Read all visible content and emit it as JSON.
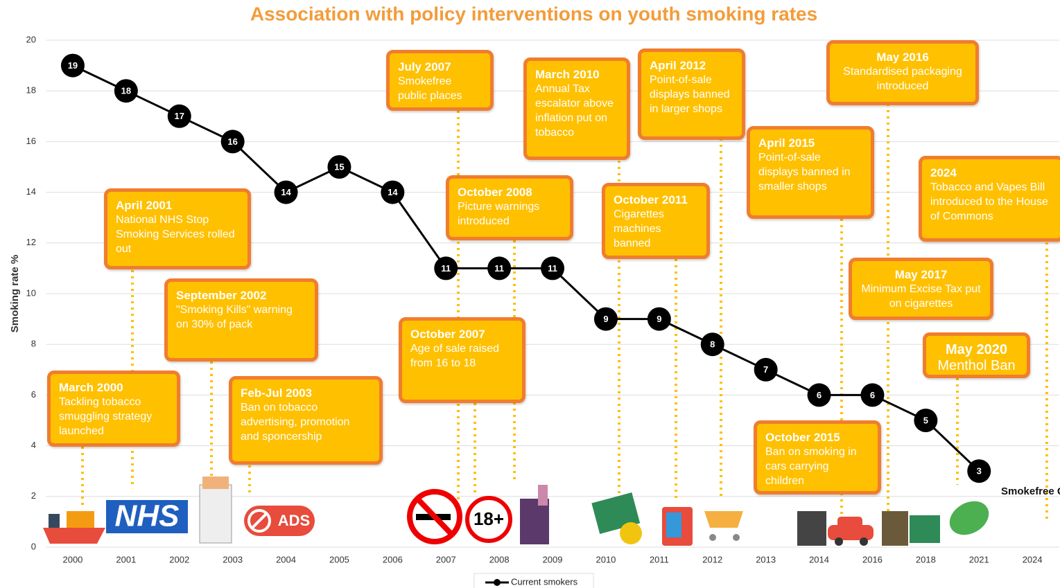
{
  "chart_data": {
    "type": "line",
    "title": "Association with policy interventions on youth smoking rates",
    "y_label": "Smoking rate %",
    "categories": [
      "2000",
      "2001",
      "2002",
      "2003",
      "2004",
      "2005",
      "2006",
      "2007",
      "2008",
      "2009",
      "2010",
      "2011",
      "2012",
      "2013",
      "2014",
      "2016",
      "2018",
      "2021",
      "2024"
    ],
    "series": [
      {
        "name": "Current smokers",
        "color": "#000000",
        "values": [
          19,
          18,
          17,
          16,
          14,
          15,
          14,
          11,
          11,
          11,
          9,
          9,
          8,
          7,
          6,
          6,
          5,
          3,
          null
        ]
      }
    ],
    "ylim": [
      0,
      20
    ],
    "yticks": [
      0,
      2,
      4,
      6,
      8,
      10,
      12,
      14,
      16,
      18,
      20
    ],
    "grid": true,
    "legend": "bottom",
    "annotations": [
      {
        "title": "March 2000",
        "text": "Tackling tobacco smuggling strategy launched"
      },
      {
        "title": "April 2001",
        "text": "National NHS Stop Smoking Services rolled out"
      },
      {
        "title": "September 2002",
        "text": "\"Smoking Kills\" warning on 30% of pack"
      },
      {
        "title": "Feb-Jul 2003",
        "text": "Ban on tobacco advertising, promotion and sponcership"
      },
      {
        "title": "July 2007",
        "text": "Smokefree public places"
      },
      {
        "title": "October 2007",
        "text": "Age of sale raised from 16 to 18"
      },
      {
        "title": "October 2008",
        "text": "Picture warnings introduced"
      },
      {
        "title": "March 2010",
        "text": "Annual Tax escalator above inflation put on tobacco"
      },
      {
        "title": "April 2012",
        "text": "Point-of-sale displays banned in larger shops"
      },
      {
        "title": "October 2011",
        "text": "Cigarettes machines banned"
      },
      {
        "title": "April 2015",
        "text": "Point-of-sale displays banned in smaller shops"
      },
      {
        "title": "May 2016",
        "text": "Standardised packaging introduced"
      },
      {
        "title": "October 2015",
        "text": "Ban on smoking in cars carrying children"
      },
      {
        "title": "2024",
        "text": "Tobacco and Vapes Bill introduced to the House of Commons"
      },
      {
        "title": "May 2017",
        "text": "Minimum Excise Tax put on cigarettes"
      },
      {
        "title": "May 2020",
        "text": "Menthol Ban"
      }
    ],
    "icon_texts": {
      "nhs": "NHS",
      "ads": "ADS",
      "age": "18+",
      "generation": "Smokefree Generation"
    }
  }
}
